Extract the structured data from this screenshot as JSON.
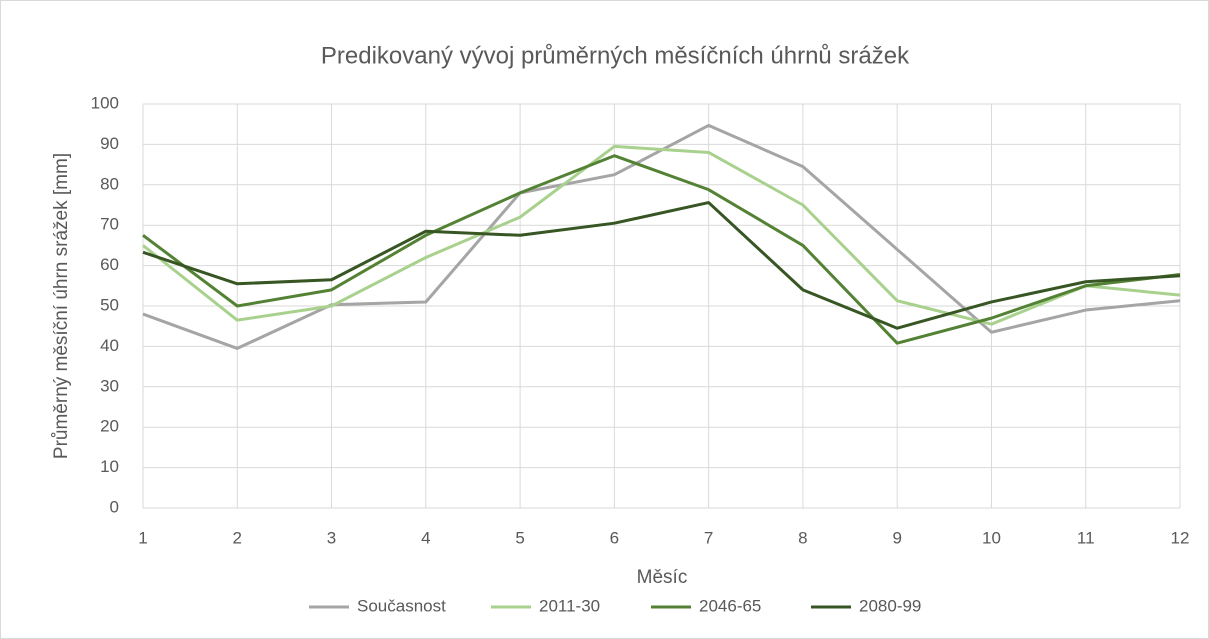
{
  "chart_data": {
    "type": "line",
    "title": "Predikovaný vývoj průměrných měsíčních úhrnů srážek",
    "x_label": "Měsíc",
    "y_label": "Průměrný měsíční úhrn srážek [mm]",
    "x": [
      1,
      2,
      3,
      4,
      5,
      6,
      7,
      8,
      9,
      10,
      11,
      12
    ],
    "xlim": [
      1,
      12
    ],
    "xticks": [
      1,
      2,
      3,
      4,
      5,
      6,
      7,
      8,
      9,
      10,
      11,
      12
    ],
    "ylim": [
      0,
      100
    ],
    "yticks": [
      0,
      10,
      20,
      30,
      40,
      50,
      60,
      70,
      80,
      90,
      100
    ],
    "grid": true,
    "legend": "bottom",
    "series": [
      {
        "name": "Současnost",
        "color": "#a5a5a5",
        "values": [
          48,
          39.5,
          50.3,
          51,
          78,
          82.5,
          94.7,
          84.5,
          64,
          43.5,
          49,
          51.3
        ]
      },
      {
        "name": "2011-30",
        "color": "#a9d18e",
        "values": [
          65,
          46.5,
          50,
          62,
          72,
          89.5,
          88,
          75,
          51.3,
          45.5,
          55,
          52.7
        ]
      },
      {
        "name": "2046-65",
        "color": "#548235",
        "values": [
          67.5,
          50,
          54,
          67.5,
          78,
          87.2,
          78.8,
          65,
          40.8,
          47,
          55,
          57.8
        ]
      },
      {
        "name": "2080-99",
        "color": "#375623",
        "values": [
          63.3,
          55.5,
          56.5,
          68.5,
          67.5,
          70.5,
          75.6,
          54,
          44.5,
          51,
          56,
          57.5
        ]
      }
    ]
  }
}
